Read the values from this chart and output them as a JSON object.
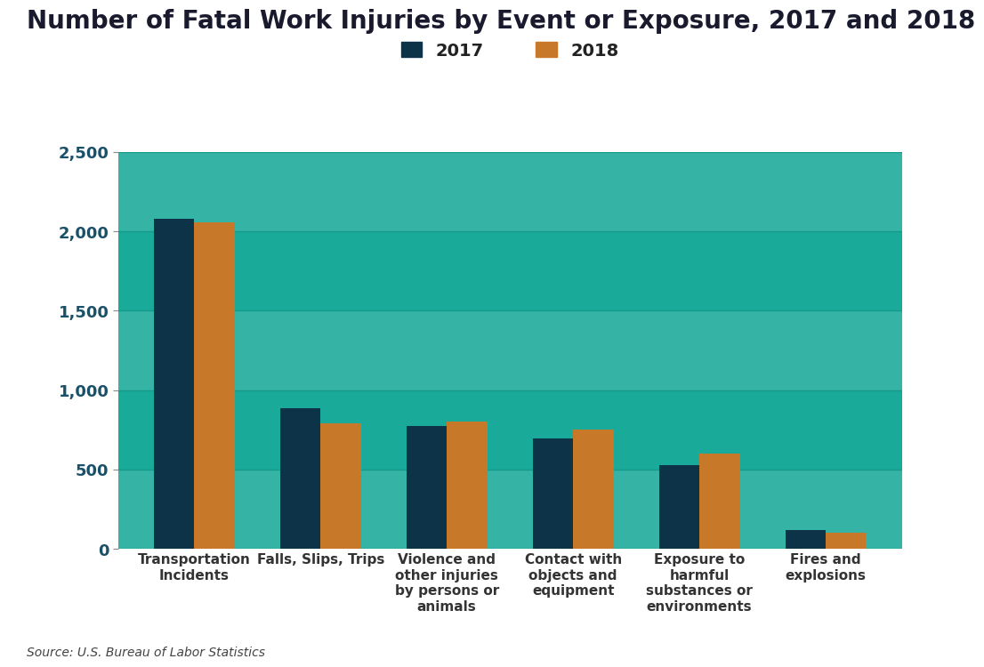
{
  "title": "Number of Fatal Work Injuries by Event or Exposure, 2017 and 2018",
  "categories": [
    "Transportation\nIncidents",
    "Falls, Slips, Trips",
    "Violence and\nother injuries\nby persons or\nanimals",
    "Contact with\nobjects and\nequipment",
    "Exposure to\nharmful\nsubstances or\nenvironments",
    "Fires and\nexplosions"
  ],
  "values_2017": [
    2077,
    887,
    775,
    695,
    526,
    115
  ],
  "values_2018": [
    2058,
    791,
    803,
    751,
    602,
    103
  ],
  "color_2017": "#0d3349",
  "color_2018": "#c87829",
  "bg_teal": "#1aaa99",
  "bg_teal_light": "#2bbdad",
  "bg_left": "#d8eaf2",
  "grid_line_color": "#14998a",
  "ylim": [
    0,
    2500
  ],
  "yticks": [
    0,
    500,
    1000,
    1500,
    2000,
    2500
  ],
  "source_text": "Source: U.S. Bureau of Labor Statistics",
  "legend_2017": "2017",
  "legend_2018": "2018",
  "title_fontsize": 20,
  "label_fontsize": 11,
  "tick_fontsize": 13,
  "source_fontsize": 10,
  "bar_width": 0.32
}
